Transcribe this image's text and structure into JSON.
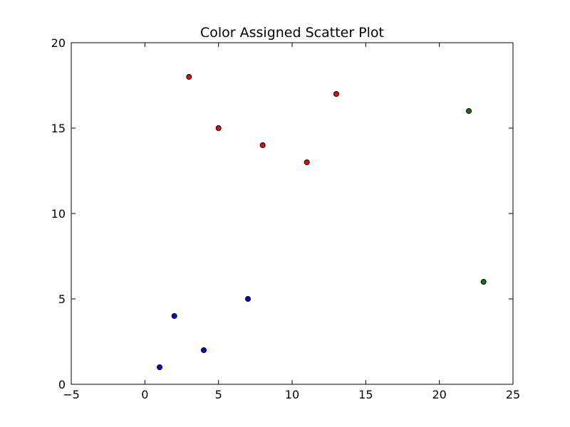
{
  "chart_data": {
    "type": "scatter",
    "title": "Color Assigned Scatter Plot",
    "xlabel": "",
    "ylabel": "",
    "xlim": [
      -5,
      25
    ],
    "ylim": [
      0,
      20
    ],
    "xticks": [
      -5,
      0,
      5,
      10,
      15,
      20,
      25
    ],
    "yticks": [
      0,
      5,
      10,
      15,
      20
    ],
    "xtick_labels": [
      "−5",
      "0",
      "5",
      "10",
      "15",
      "20",
      "25"
    ],
    "ytick_labels": [
      "0",
      "5",
      "10",
      "15",
      "20"
    ],
    "grid": false,
    "legend": "none",
    "colors": {
      "blue": "#0000ff",
      "red": "#ff0000",
      "green": "#008000",
      "marker_edge": "#000000"
    },
    "series": [
      {
        "color": "#0000ff",
        "points": [
          {
            "x": 1,
            "y": 1
          },
          {
            "x": 2,
            "y": 4
          },
          {
            "x": 4,
            "y": 2
          },
          {
            "x": 7,
            "y": 5
          }
        ]
      },
      {
        "color": "#ff0000",
        "points": [
          {
            "x": 3,
            "y": 18
          },
          {
            "x": 5,
            "y": 15
          },
          {
            "x": 8,
            "y": 14
          },
          {
            "x": 11,
            "y": 13
          },
          {
            "x": 13,
            "y": 17
          }
        ]
      },
      {
        "color": "#008000",
        "points": [
          {
            "x": 22,
            "y": 16
          },
          {
            "x": 23,
            "y": 6
          }
        ]
      }
    ]
  }
}
